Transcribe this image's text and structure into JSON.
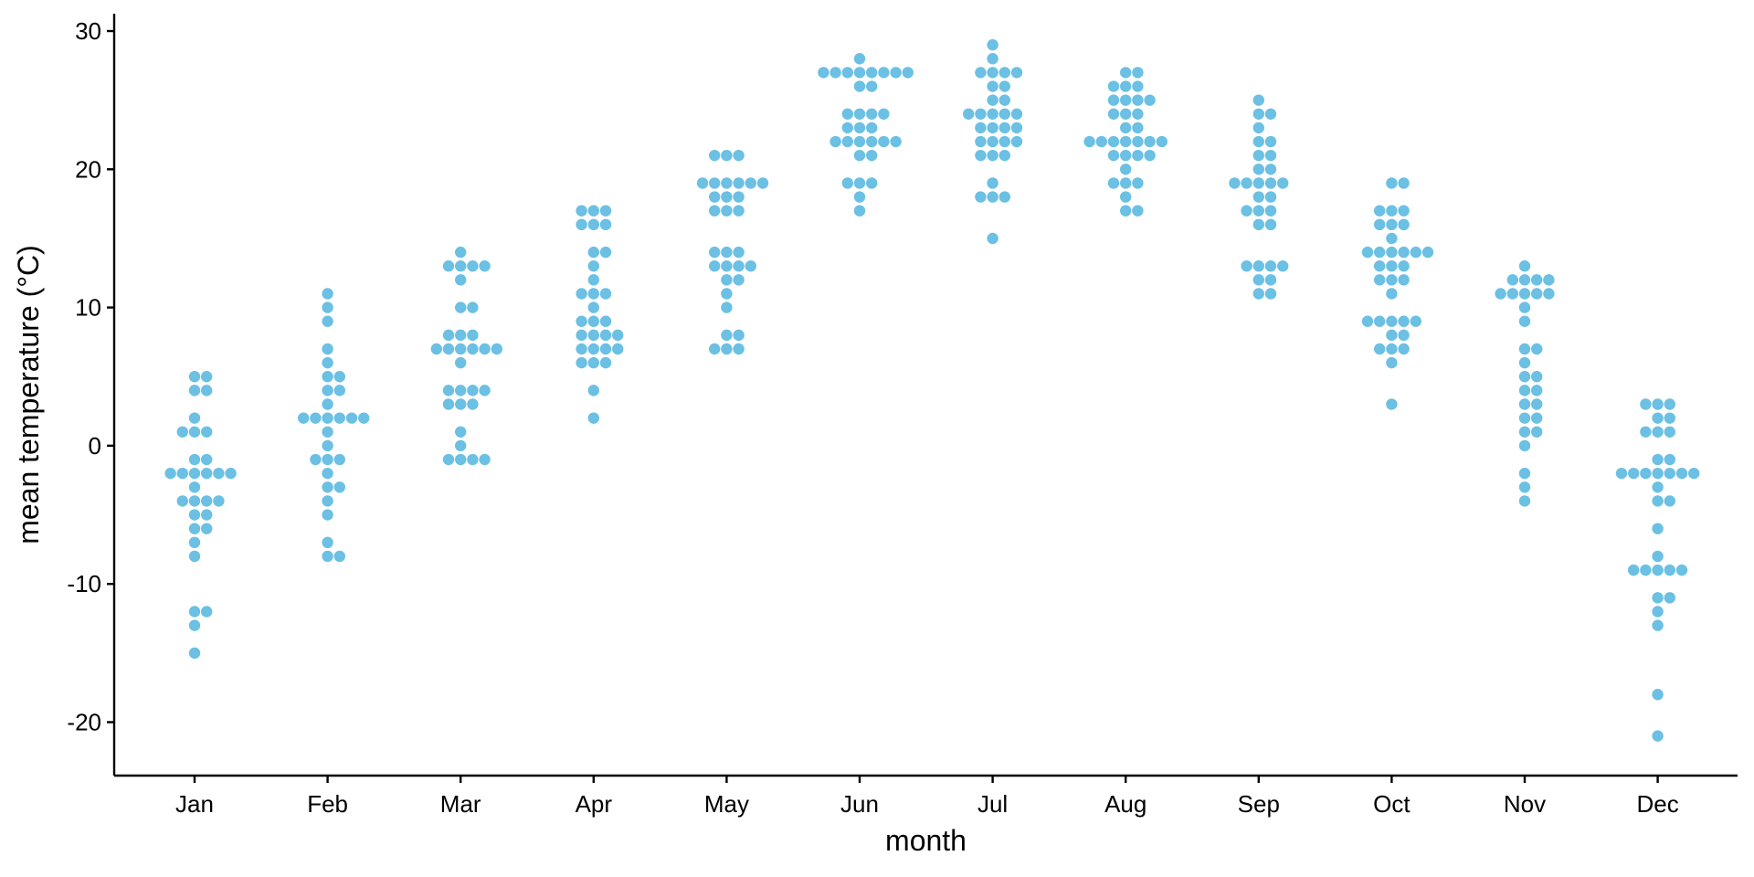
{
  "chart_data": {
    "type": "scatter",
    "subtype": "beeswarm",
    "title": "",
    "xlabel": "month",
    "ylabel": "mean temperature (°C)",
    "categories": [
      "Jan",
      "Feb",
      "Mar",
      "Apr",
      "May",
      "Jun",
      "Jul",
      "Aug",
      "Sep",
      "Oct",
      "Nov",
      "Dec"
    ],
    "ylim": [
      -23.3,
      31.5
    ],
    "yticks": [
      -20,
      -10,
      0,
      10,
      20,
      30
    ],
    "ytick_labels": [
      "-20",
      "-10",
      "0",
      "10",
      "20",
      "30"
    ],
    "grid": false,
    "point_color": "#6BC0E3",
    "series": [
      {
        "category": "Jan",
        "values": [
          5,
          5,
          4,
          4,
          2,
          1,
          1,
          1,
          -1,
          -1,
          -2,
          -2,
          -2,
          -2,
          -2,
          -2,
          -3,
          -4,
          -4,
          -4,
          -4,
          -5,
          -5,
          -6,
          -6,
          -7,
          -8,
          -12,
          -12,
          -13,
          -15
        ]
      },
      {
        "category": "Feb",
        "values": [
          11,
          10,
          9,
          7,
          6,
          5,
          5,
          4,
          4,
          3,
          2,
          2,
          2,
          2,
          2,
          2,
          1,
          0,
          -1,
          -1,
          -1,
          -2,
          -3,
          -3,
          -4,
          -5,
          -7,
          -8,
          -8
        ]
      },
      {
        "category": "Mar",
        "values": [
          14,
          13,
          13,
          13,
          13,
          12,
          10,
          10,
          8,
          8,
          8,
          7,
          7,
          7,
          7,
          7,
          7,
          6,
          4,
          4,
          4,
          4,
          3,
          3,
          3,
          1,
          0,
          -1,
          -1,
          -1,
          -1
        ]
      },
      {
        "category": "Apr",
        "values": [
          17,
          17,
          17,
          16,
          16,
          16,
          14,
          14,
          13,
          12,
          11,
          11,
          11,
          10,
          9,
          9,
          9,
          8,
          8,
          8,
          8,
          7,
          7,
          7,
          7,
          6,
          6,
          6,
          4,
          2
        ]
      },
      {
        "category": "May",
        "values": [
          21,
          21,
          21,
          19,
          19,
          19,
          19,
          19,
          19,
          18,
          18,
          18,
          17,
          17,
          17,
          14,
          14,
          14,
          13,
          13,
          13,
          13,
          12,
          12,
          11,
          10,
          8,
          8,
          7,
          7,
          7
        ]
      },
      {
        "category": "Jun",
        "values": [
          28,
          27,
          27,
          27,
          27,
          27,
          27,
          27,
          27,
          26,
          26,
          24,
          24,
          24,
          24,
          23,
          23,
          23,
          22,
          22,
          22,
          22,
          22,
          22,
          21,
          21,
          19,
          19,
          19,
          18,
          17
        ]
      },
      {
        "category": "Jul",
        "values": [
          29,
          28,
          27,
          27,
          27,
          27,
          26,
          26,
          25,
          25,
          24,
          24,
          24,
          24,
          24,
          23,
          23,
          23,
          23,
          22,
          22,
          22,
          22,
          21,
          21,
          21,
          19,
          18,
          18,
          18,
          15
        ]
      },
      {
        "category": "Aug",
        "values": [
          27,
          27,
          26,
          26,
          26,
          25,
          25,
          25,
          25,
          24,
          24,
          24,
          23,
          23,
          22,
          22,
          22,
          22,
          22,
          22,
          22,
          21,
          21,
          21,
          21,
          20,
          19,
          19,
          19,
          18,
          17,
          17
        ]
      },
      {
        "category": "Sep",
        "values": [
          25,
          24,
          24,
          23,
          22,
          22,
          21,
          21,
          20,
          20,
          19,
          19,
          19,
          19,
          19,
          18,
          18,
          17,
          17,
          17,
          16,
          16,
          13,
          13,
          13,
          13,
          12,
          12,
          11,
          11
        ]
      },
      {
        "category": "Oct",
        "values": [
          19,
          19,
          17,
          17,
          17,
          16,
          16,
          16,
          15,
          14,
          14,
          14,
          14,
          14,
          14,
          13,
          13,
          13,
          12,
          12,
          12,
          11,
          9,
          9,
          9,
          9,
          9,
          8,
          8,
          7,
          7,
          7,
          6,
          3
        ]
      },
      {
        "category": "Nov",
        "values": [
          13,
          12,
          12,
          12,
          12,
          11,
          11,
          11,
          11,
          11,
          10,
          9,
          7,
          7,
          6,
          5,
          5,
          4,
          4,
          3,
          3,
          2,
          2,
          1,
          1,
          0,
          -2,
          -3,
          -4
        ]
      },
      {
        "category": "Dec",
        "values": [
          3,
          3,
          3,
          2,
          2,
          1,
          1,
          1,
          -1,
          -1,
          -2,
          -2,
          -2,
          -2,
          -2,
          -2,
          -2,
          -3,
          -4,
          -4,
          -6,
          -8,
          -9,
          -9,
          -9,
          -9,
          -9,
          -11,
          -11,
          -12,
          -13,
          -18,
          -21
        ]
      }
    ]
  }
}
